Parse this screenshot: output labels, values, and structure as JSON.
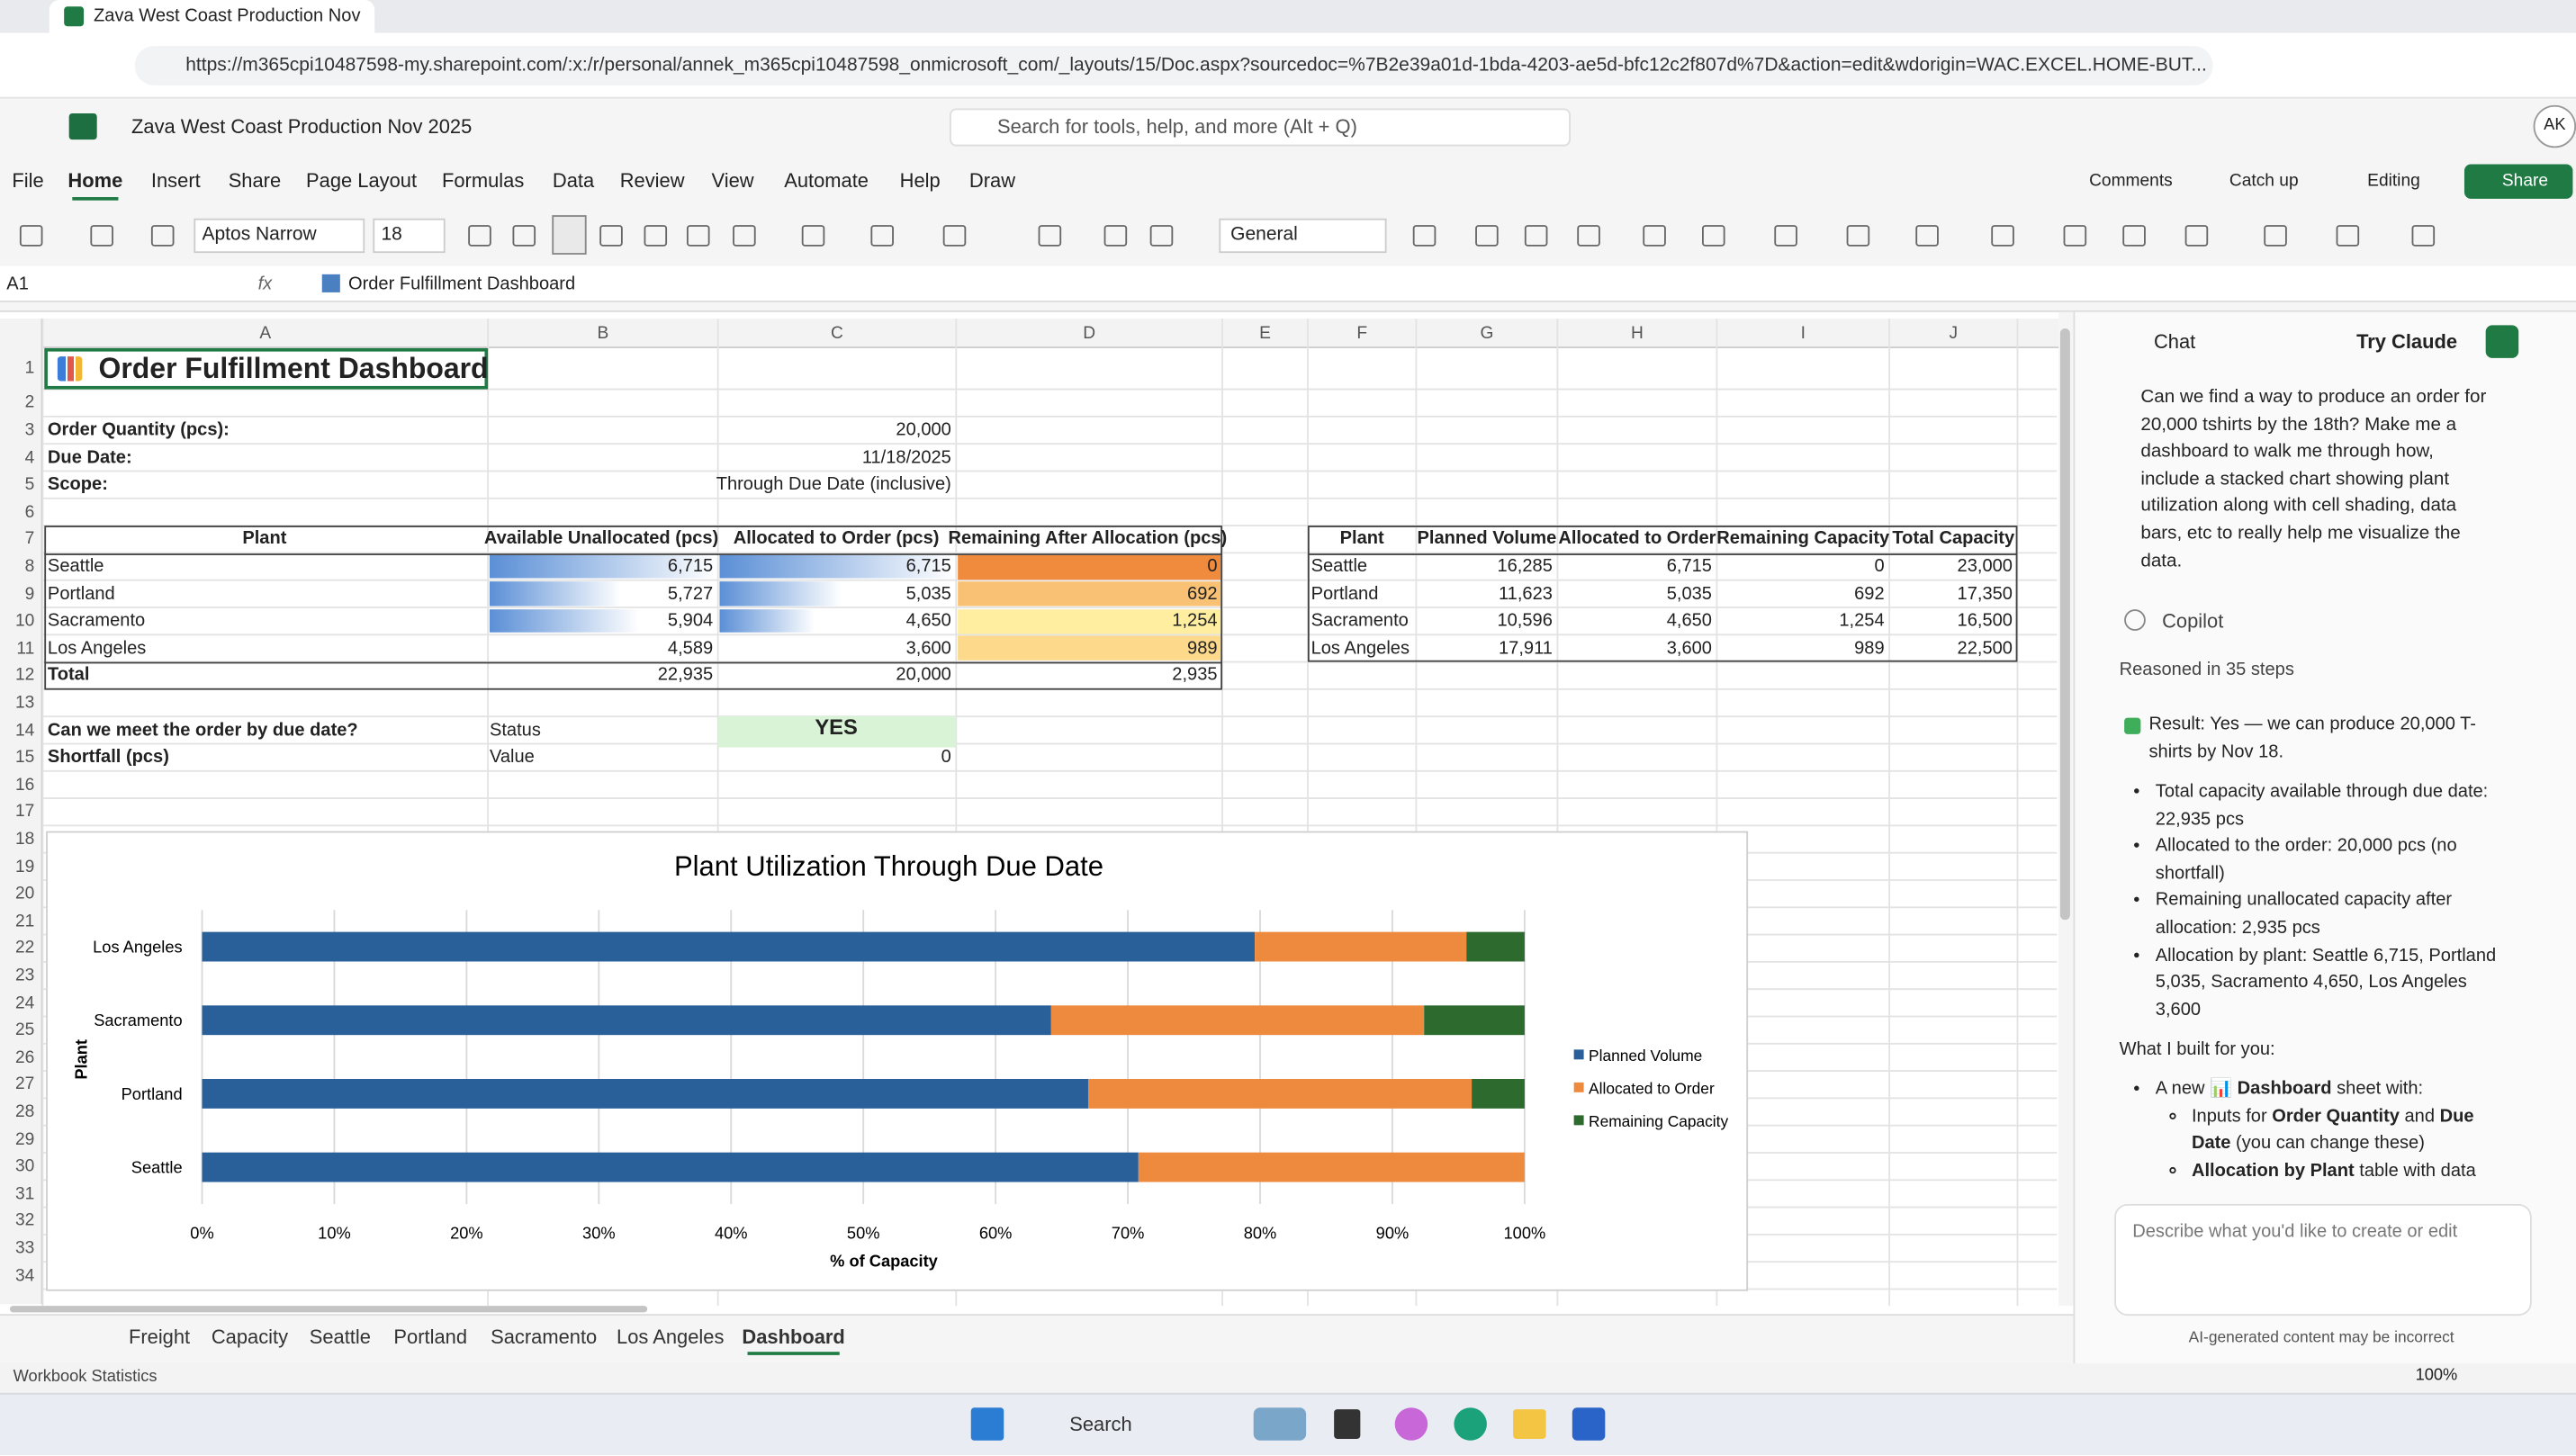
{
  "browser": {
    "tab_title": "Zava West Coast Production Nov",
    "url": "https://m365cpi10487598-my.sharepoint.com/:x:/r/personal/annek_m365cpi10487598_onmicrosoft_com/_layouts/15/Doc.aspx?sourcedoc=%7B2e39a01d-1bda-4203-ae5d-bfc12c2f807d%7D&action=edit&wdorigin=WAC.EXCEL.HOME-BUT..."
  },
  "app": {
    "file_name": "Zava West Coast Production Nov 2025",
    "search": "Search for tools, help, and more (Alt + Q)",
    "avatar": "AK"
  },
  "ribbon": {
    "tabs": [
      "File",
      "Home",
      "Insert",
      "Share",
      "Page Layout",
      "Formulas",
      "Data",
      "Review",
      "View",
      "Automate",
      "Help",
      "Draw"
    ],
    "active_tab": 1,
    "buttons": [
      "Comments",
      "Catch up",
      "Editing",
      "Share"
    ],
    "font": "Aptos Narrow",
    "font_size": "18",
    "number_format": "General"
  },
  "formula_bar": {
    "name_box": "A1",
    "function_label": "fx",
    "content": "Order Fulfillment Dashboard"
  },
  "sheet": {
    "columns": [
      "A",
      "B",
      "C",
      "D",
      "E",
      "F",
      "G",
      "H",
      "I",
      "J"
    ],
    "rows": [
      "1",
      "2",
      "3",
      "4",
      "5",
      "6",
      "7",
      "8",
      "9",
      "10",
      "11",
      "12",
      "13",
      "14",
      "15",
      "16",
      "17",
      "18",
      "19",
      "20",
      "21",
      "22",
      "23",
      "24",
      "25",
      "26",
      "27",
      "28",
      "29",
      "30",
      "31",
      "32",
      "33",
      "34"
    ],
    "title": "Order Fulfillment Dashboard",
    "inputs": [
      [
        "Order Quantity (pcs):",
        "20,000"
      ],
      [
        "Due Date:",
        "11/18/2025"
      ],
      [
        "Scope:",
        "Through Due Date (inclusive)"
      ]
    ],
    "allocation_table": {
      "header": [
        "Plant",
        "Available Unallocated (pcs)",
        "Allocated to Order (pcs)",
        "Remaining After Allocation (pcs)"
      ],
      "rows": [
        [
          "Seattle",
          "6,715",
          "6,715",
          "0"
        ],
        [
          "Portland",
          "5,727",
          "5,035",
          "692"
        ],
        [
          "Sacramento",
          "5,904",
          "4,650",
          "1,254"
        ],
        [
          "Los Angeles",
          "4,589",
          "3,600",
          "989"
        ]
      ],
      "total": [
        "Total",
        "22,935",
        "20,000",
        "2,935"
      ]
    },
    "capacity_table": {
      "header": [
        "Plant",
        "Planned Volume",
        "Allocated to Order",
        "Remaining Capacity",
        "Total Capacity"
      ],
      "rows": [
        [
          "Seattle",
          "16,285",
          "6,715",
          "0",
          "23,000"
        ],
        [
          "Portland",
          "11,623",
          "5,035",
          "692",
          "17,350"
        ],
        [
          "Sacramento",
          "10,596",
          "4,650",
          "1,254",
          "16,500"
        ],
        [
          "Los Angeles",
          "17,911",
          "3,600",
          "989",
          "22,500"
        ]
      ]
    },
    "status_rows": [
      [
        "Can we meet the order by due date?",
        "Status",
        "YES"
      ],
      [
        "Shortfall (pcs)",
        "Value",
        "0"
      ]
    ]
  },
  "chart_data": {
    "type": "bar",
    "orientation": "horizontal",
    "stacked": true,
    "title": "Plant Utilization Through Due Date",
    "x_label": "% of Capacity",
    "y_label": "Plant",
    "categories": [
      "Seattle",
      "Portland",
      "Sacramento",
      "Los Angeles"
    ],
    "series": [
      {
        "name": "Planned Volume",
        "color": "#2a6099",
        "values": [
          70.8,
          67.0,
          64.2,
          79.6
        ]
      },
      {
        "name": "Allocated to Order",
        "color": "#ee8a3d",
        "values": [
          29.2,
          29.0,
          28.2,
          16.0
        ]
      },
      {
        "name": "Remaining Capacity",
        "color": "#2c6b2d",
        "values": [
          0,
          4.0,
          7.6,
          4.4
        ]
      }
    ],
    "xlim": [
      0,
      100
    ],
    "xticks": [
      {
        "value": 0,
        "label": "0%"
      },
      {
        "value": 10,
        "label": "10%"
      },
      {
        "value": 20,
        "label": "20%"
      },
      {
        "value": 30,
        "label": "30%"
      },
      {
        "value": 40,
        "label": "40%"
      },
      {
        "value": 50,
        "label": "50%"
      },
      {
        "value": 60,
        "label": "60%"
      },
      {
        "value": 70,
        "label": "70%"
      },
      {
        "value": 80,
        "label": "80%"
      },
      {
        "value": 90,
        "label": "90%"
      },
      {
        "value": 100,
        "label": "100%"
      }
    ],
    "grid": true,
    "legend": "right"
  },
  "sheet_tabs": [
    "Freight",
    "Capacity",
    "Seattle",
    "Portland",
    "Sacramento",
    "Los Angeles",
    "Dashboard"
  ],
  "active_sheet": 6,
  "status_bar": {
    "left": "Workbook Statistics",
    "zoom": "100%"
  },
  "chat": {
    "title": "Chat",
    "try_button": "Try Claude",
    "user_message": "Can we find a way to produce an order for 20,000 tshirts by the 18th? Make me a dashboard to walk me through how, include a stacked chart showing plant utilization along with cell shading, data bars, etc to really help me visualize the data.",
    "assistant": "Copilot",
    "reasoning": "Reasoned in 35 steps",
    "result": "Result: Yes — we can produce 20,000 T-shirts by Nov 18.",
    "bullets": [
      "Total capacity available through due date: 22,935 pcs",
      "Allocated to the order: 20,000 pcs (no shortfall)",
      "Remaining unallocated capacity after allocation: 2,935 pcs",
      "Allocation by plant: Seattle 6,715, Portland 5,035, Sacramento 4,650, Los Angeles 3,600"
    ],
    "built_heading": "What I built for you:",
    "built_item": [
      "A new 📊 ",
      {
        "bold": "Dashboard"
      },
      " sheet with:"
    ],
    "built_subitems": [
      [
        "Inputs for ",
        {
          "bold": "Order Quantity"
        },
        " and ",
        {
          "bold": "Due Date"
        },
        " (you can change these)"
      ],
      [
        {
          "bold": "Allocation by Plant"
        },
        " table with data"
      ]
    ],
    "input_placeholder": "Describe what you'd like to create or edit",
    "disclaimer": "AI-generated content may be incorrect"
  },
  "taskbar": {
    "search": "Search"
  }
}
